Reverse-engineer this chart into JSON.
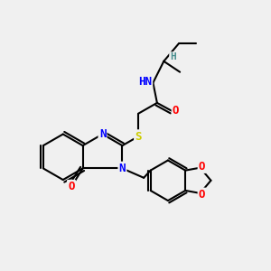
{
  "bg_color": "#f0f0f0",
  "bond_color": "#000000",
  "bond_width": 1.5,
  "atom_colors": {
    "N": "#0000ff",
    "O": "#ff0000",
    "S": "#cccc00",
    "C": "#000000",
    "H_label": "#4a9090"
  },
  "font_size_atoms": 9,
  "font_size_h": 8
}
